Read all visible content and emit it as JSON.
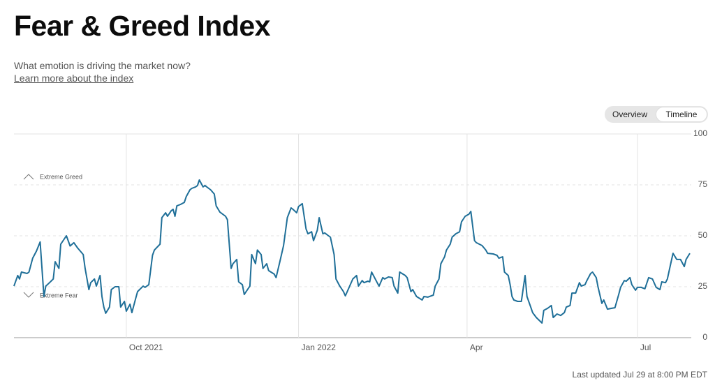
{
  "header": {
    "title": "Fear & Greed Index",
    "subtitle": "What emotion is driving the market now?",
    "link": "Learn more about the index"
  },
  "toggle": [
    "Overview",
    "Timeline"
  ],
  "footer": "Last updated Jul 29 at 8:00 PM EDT",
  "chart_data": {
    "type": "line",
    "annotations": [
      "Extreme Greed",
      "Extreme Fear"
    ],
    "x": [
      "2021-08-02",
      "2021-08-04",
      "2021-08-05",
      "2021-08-06",
      "2021-08-09",
      "2021-08-10",
      "2021-08-12",
      "2021-08-14",
      "2021-08-16",
      "2021-08-18",
      "2021-08-19",
      "2021-08-21",
      "2021-08-23",
      "2021-08-24",
      "2021-08-26",
      "2021-08-27",
      "2021-08-30",
      "2021-09-01",
      "2021-09-03",
      "2021-09-05",
      "2021-09-08",
      "2021-09-09",
      "2021-09-11",
      "2021-09-12",
      "2021-09-14",
      "2021-09-15",
      "2021-09-17",
      "2021-09-18",
      "2021-09-19",
      "2021-09-20",
      "2021-09-22",
      "2021-09-23",
      "2021-09-25",
      "2021-09-27",
      "2021-09-28",
      "2021-09-30",
      "2021-10-01",
      "2021-10-03",
      "2021-10-04",
      "2021-10-06",
      "2021-10-07",
      "2021-10-10",
      "2021-10-11",
      "2021-10-13",
      "2021-10-15",
      "2021-10-16",
      "2021-10-19",
      "2021-10-20",
      "2021-10-22",
      "2021-10-23",
      "2021-10-25",
      "2021-10-26",
      "2021-10-27",
      "2021-10-28",
      "2021-10-30",
      "2021-11-01",
      "2021-11-02",
      "2021-11-04",
      "2021-11-05",
      "2021-11-07",
      "2021-11-08",
      "2021-11-09",
      "2021-11-11",
      "2021-11-12",
      "2021-11-14",
      "2021-11-15",
      "2021-11-17",
      "2021-11-18",
      "2021-11-20",
      "2021-11-23",
      "2021-11-24",
      "2021-11-26",
      "2021-11-27",
      "2021-11-29",
      "2021-11-30",
      "2021-12-02",
      "2021-12-03",
      "2021-12-04",
      "2021-12-06",
      "2021-12-07",
      "2021-12-09",
      "2021-12-10",
      "2021-12-12",
      "2021-12-13",
      "2021-12-15",
      "2021-12-16",
      "2021-12-19",
      "2021-12-20",
      "2021-12-22",
      "2021-12-24",
      "2021-12-26",
      "2021-12-28",
      "2021-12-29",
      "2021-12-31",
      "2022-01-01",
      "2022-01-03",
      "2022-01-05",
      "2022-01-06",
      "2022-01-08",
      "2022-01-09",
      "2022-01-11",
      "2022-01-12",
      "2022-01-14",
      "2022-01-15",
      "2022-01-17",
      "2022-01-18",
      "2022-01-20",
      "2022-01-21",
      "2022-01-23",
      "2022-01-25",
      "2022-01-26",
      "2022-01-28",
      "2022-01-30",
      "2022-02-01",
      "2022-02-02",
      "2022-02-04",
      "2022-02-05",
      "2022-02-07",
      "2022-02-08",
      "2022-02-09",
      "2022-02-10",
      "2022-02-12",
      "2022-02-13",
      "2022-02-15",
      "2022-02-16",
      "2022-02-18",
      "2022-02-20",
      "2022-02-21",
      "2022-02-23",
      "2022-02-24",
      "2022-02-27",
      "2022-02-28",
      "2022-03-02",
      "2022-03-03",
      "2022-03-05",
      "2022-03-08",
      "2022-03-09",
      "2022-03-11",
      "2022-03-14",
      "2022-03-15",
      "2022-03-17",
      "2022-03-18",
      "2022-03-20",
      "2022-03-21",
      "2022-03-23",
      "2022-03-24",
      "2022-03-26",
      "2022-03-28",
      "2022-03-29",
      "2022-03-31",
      "2022-04-02",
      "2022-04-03",
      "2022-04-05",
      "2022-04-06",
      "2022-04-09",
      "2022-04-11",
      "2022-04-12",
      "2022-04-15",
      "2022-04-17",
      "2022-04-18",
      "2022-04-20",
      "2022-04-21",
      "2022-04-23",
      "2022-04-24",
      "2022-04-25",
      "2022-04-26",
      "2022-04-28",
      "2022-04-30",
      "2022-05-02",
      "2022-05-03",
      "2022-05-05",
      "2022-05-06",
      "2022-05-08",
      "2022-05-11",
      "2022-05-12",
      "2022-05-14",
      "2022-05-16",
      "2022-05-17",
      "2022-05-19",
      "2022-05-21",
      "2022-05-23",
      "2022-05-24",
      "2022-05-26",
      "2022-05-27",
      "2022-05-29",
      "2022-05-31",
      "2022-06-01",
      "2022-06-03",
      "2022-06-04",
      "2022-06-06",
      "2022-06-07",
      "2022-06-09",
      "2022-06-10",
      "2022-06-12",
      "2022-06-13",
      "2022-06-15",
      "2022-06-17",
      "2022-06-19",
      "2022-06-21",
      "2022-06-22",
      "2022-06-24",
      "2022-06-25",
      "2022-06-27",
      "2022-06-28",
      "2022-06-30",
      "2022-07-01",
      "2022-07-03",
      "2022-07-05",
      "2022-07-07",
      "2022-07-09",
      "2022-07-11",
      "2022-07-13",
      "2022-07-14",
      "2022-07-16",
      "2022-07-17",
      "2022-07-19",
      "2022-07-20",
      "2022-07-22",
      "2022-07-24",
      "2022-07-26",
      "2022-07-27",
      "2022-07-29"
    ],
    "series": [
      {
        "color": "#1f6f98",
        "values": [
          25.3,
          30.5,
          28.8,
          32.2,
          31.5,
          32.2,
          39,
          42.5,
          47,
          20.2,
          25.3,
          27,
          28.8,
          37.3,
          34,
          45.9,
          50,
          45,
          46.6,
          44,
          40.8,
          34,
          23.6,
          27,
          28.8,
          25.3,
          30.5,
          20.2,
          15,
          12,
          15,
          23.6,
          25,
          25,
          15,
          17.8,
          13,
          16.4,
          12.3,
          19.2,
          22.6,
          25.3,
          24.7,
          26,
          40.4,
          43,
          45.9,
          58.9,
          61.3,
          59.6,
          62.3,
          63,
          59.6,
          64.7,
          65.4,
          66.4,
          69.2,
          72.6,
          73.3,
          74,
          74.7,
          77.4,
          74,
          74.7,
          73.3,
          72.6,
          70.5,
          64.7,
          61.6,
          59.6,
          57.9,
          34,
          36.3,
          38.4,
          27.4,
          26,
          21.2,
          22.6,
          25.3,
          40.8,
          36.3,
          43,
          40.8,
          34,
          36.3,
          32.9,
          31.2,
          29.5,
          37.3,
          45.2,
          58.9,
          63.7,
          63,
          61.3,
          64.4,
          65.8,
          53.4,
          51,
          52,
          47.6,
          52.7,
          58.9,
          51,
          51.4,
          50,
          49.3,
          40.8,
          28.8,
          25.3,
          22.6,
          20.5,
          24.7,
          28.8,
          30.5,
          25.3,
          28,
          27,
          27.7,
          27.4,
          32.2,
          30.5,
          27,
          25.3,
          29.5,
          28.8,
          29.8,
          29.5,
          25.3,
          21.9,
          32.2,
          30.5,
          29.5,
          22.6,
          23.6,
          20.2,
          18.5,
          20.2,
          19.9,
          20.9,
          25.3,
          28.8,
          36.3,
          39.7,
          43,
          45.9,
          49.3,
          51,
          52,
          56.8,
          59.6,
          60.6,
          62,
          47.6,
          46.6,
          45.2,
          43,
          41.4,
          41.1,
          40.4,
          39,
          39.7,
          32.2,
          30.5,
          26,
          20.2,
          18.5,
          17.8,
          17.8,
          30.5,
          20.2,
          15,
          12.3,
          9.9,
          7.2,
          13.4,
          14.4,
          15.8,
          9.9,
          11.6,
          10.9,
          12.3,
          15,
          15.8,
          21.9,
          21.9,
          27,
          25.3,
          26,
          28,
          31.5,
          32.2,
          29.5,
          24.7,
          16.8,
          18.5,
          14,
          14.4,
          14.7,
          21.2,
          24.7,
          28,
          27.7,
          29.5,
          26,
          23.3,
          24.7,
          24.7,
          24,
          29.5,
          28.8,
          24.7,
          23.6,
          27.4,
          27,
          28.8,
          37.3,
          41.4,
          38.4,
          38.4,
          34.9,
          38.4,
          41.4
        ]
      }
    ],
    "xlim": [
      "2021-08-02",
      "2022-07-29"
    ],
    "xticks": [
      {
        "value": "2021-10-01",
        "label": "Oct 2021"
      },
      {
        "value": "2022-01-01",
        "label": "Jan 2022"
      },
      {
        "value": "2022-04-01",
        "label": "Apr"
      },
      {
        "value": "2022-07-01",
        "label": "Jul"
      }
    ],
    "ylim": [
      0,
      100
    ],
    "yticks": [
      0,
      25,
      50,
      75,
      100
    ],
    "grid": true
  }
}
